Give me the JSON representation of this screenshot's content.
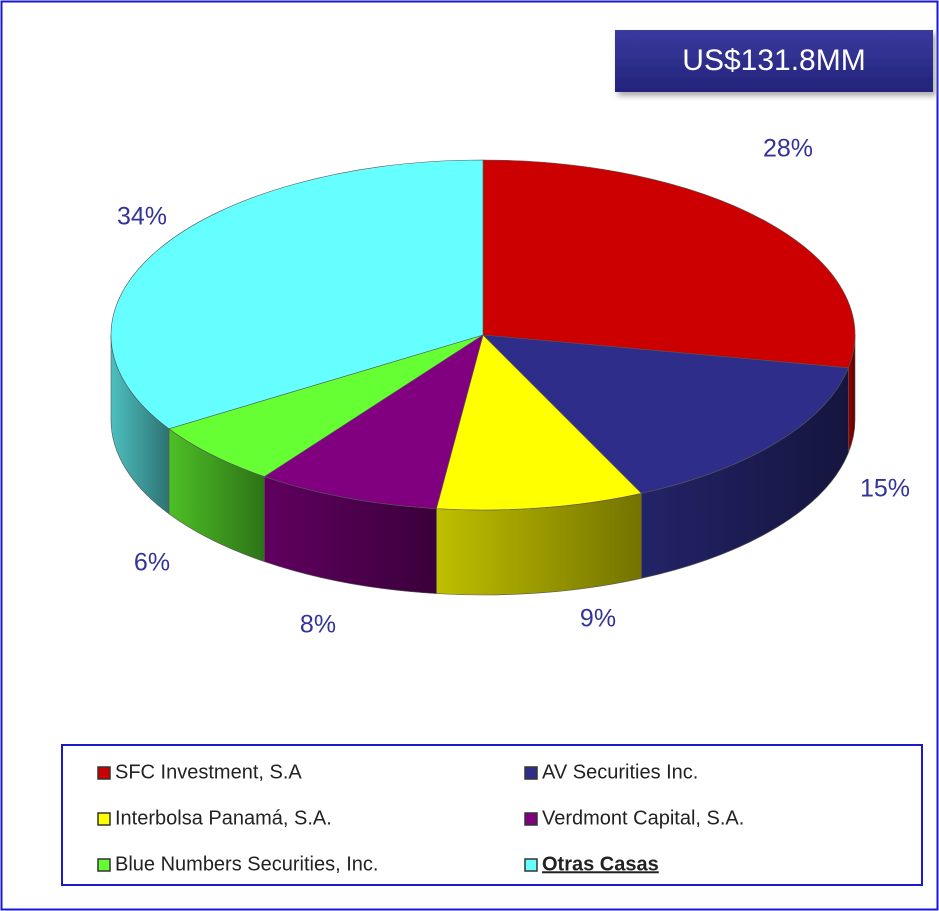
{
  "chart_data": {
    "type": "pie",
    "annotation": "US$131.8MM",
    "categories": [
      "SFC Investment, S.A",
      "AV Securities Inc.",
      "Interbolsa Panamá, S.A.",
      "Verdmont Capital, S.A.",
      "Blue Numbers Securities, Inc.",
      "Otras Casas"
    ],
    "values": [
      28,
      15,
      9,
      8,
      6,
      34
    ],
    "value_labels": [
      "28%",
      "15%",
      "9%",
      "8%",
      "6%",
      "34%"
    ],
    "colors": [
      "#cc0000",
      "#2e2e8a",
      "#ffff00",
      "#800080",
      "#66ff33",
      "#66ffff"
    ],
    "legend": "bottom"
  }
}
